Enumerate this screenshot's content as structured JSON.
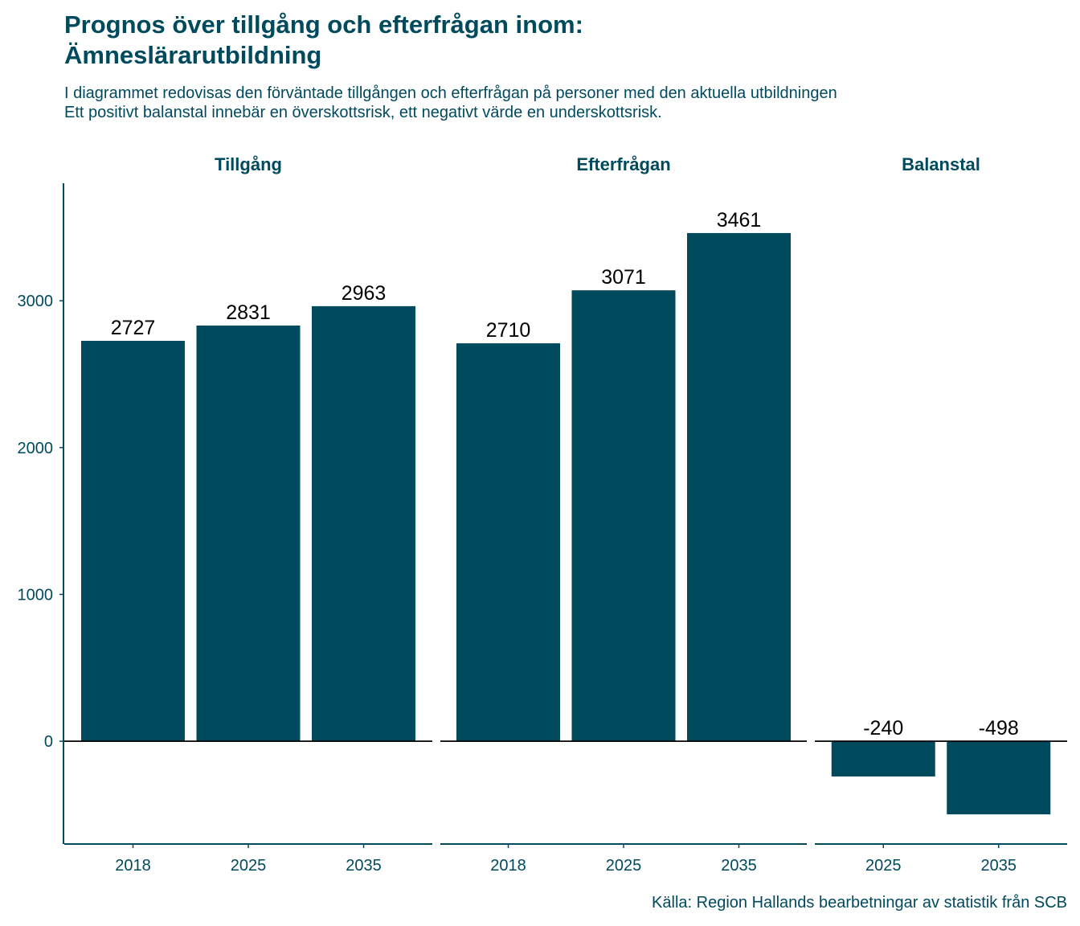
{
  "title_line1": "Prognos över tillgång och efterfrågan inom:",
  "title_line2": "Ämneslärarutbildning",
  "subtitle_line1": "I diagrammet redovisas den förväntade tillgången och efterfrågan på personer med den aktuella utbildningen",
  "subtitle_line2": "Ett positivt balanstal innebär en överskottsrisk, ett negativt värde en underskottsrisk.",
  "caption": "Källa: Region Hallands bearbetningar av statistik från SCB",
  "colors": {
    "bar": "#004a5e",
    "text": "#004a5e",
    "label": "#000000"
  },
  "chart_data": {
    "type": "bar",
    "faceted": true,
    "ylim": [
      -700,
      3800
    ],
    "yticks": [
      "0",
      "1000",
      "2000",
      "3000"
    ],
    "panels": [
      {
        "name": "Tillgång",
        "categories": [
          "2018",
          "2025",
          "2035"
        ],
        "values": [
          2727,
          2831,
          2963
        ],
        "labels": [
          "2727",
          "2831",
          "2963"
        ]
      },
      {
        "name": "Efterfrågan",
        "categories": [
          "2018",
          "2025",
          "2035"
        ],
        "values": [
          2710,
          3071,
          3461
        ],
        "labels": [
          "2710",
          "3071",
          "3461"
        ]
      },
      {
        "name": "Balanstal",
        "categories": [
          "2025",
          "2035"
        ],
        "values": [
          -240,
          -498
        ],
        "labels": [
          "-240",
          "-498"
        ]
      }
    ]
  }
}
